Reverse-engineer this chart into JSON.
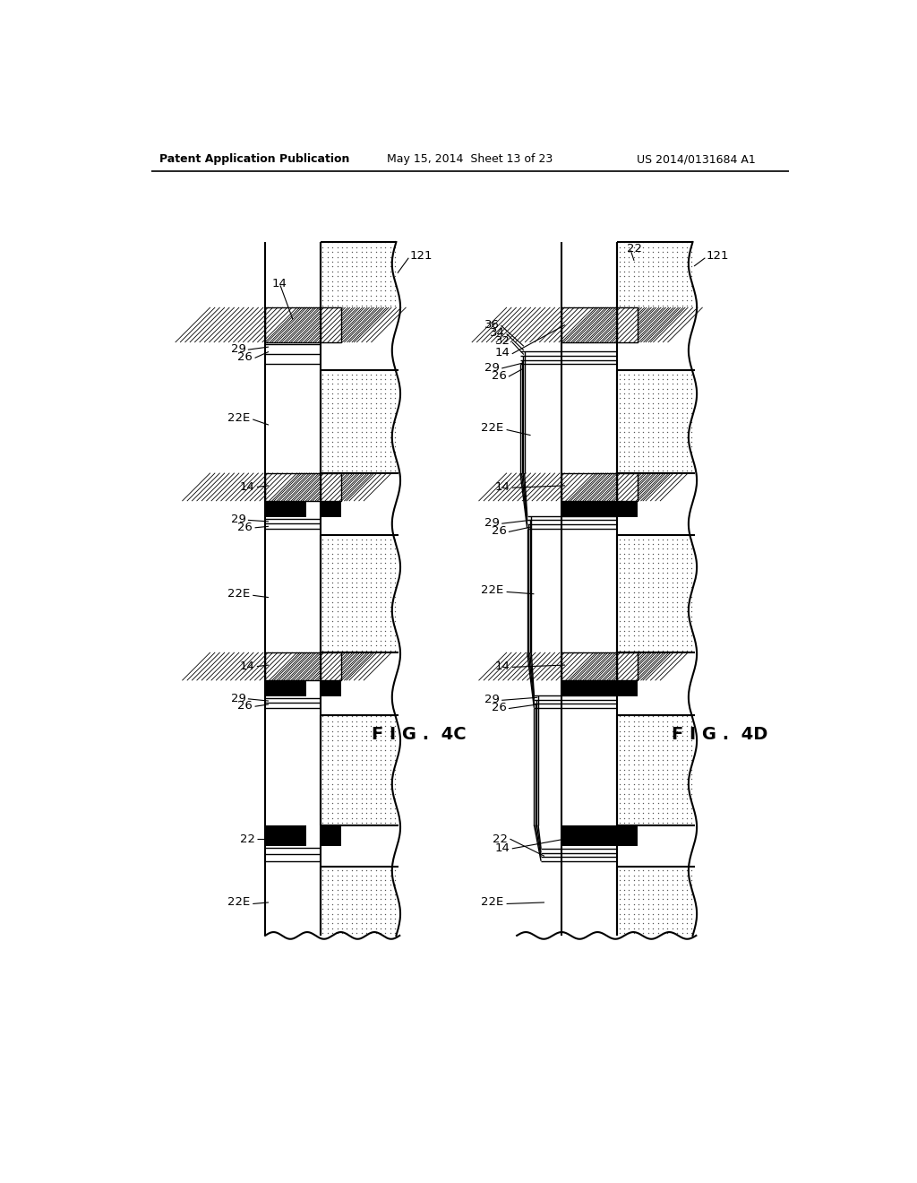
{
  "background_color": "#ffffff",
  "header_left": "Patent Application Publication",
  "header_center": "May 15, 2014  Sheet 13 of 23",
  "header_right": "US 2014/0131684 A1",
  "fig4c_label": "F I G .  4C",
  "fig4d_label": "F I G .  4D"
}
